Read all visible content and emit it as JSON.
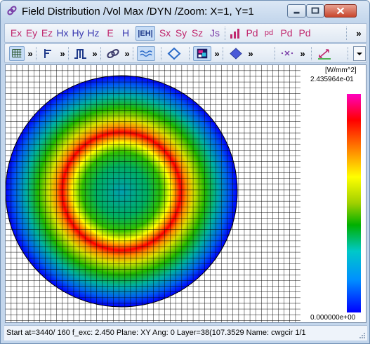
{
  "window": {
    "title": "Field Distribution /Vol Max /DYN /Zoom: X=1, Y=1"
  },
  "toolbar1": {
    "items": [
      {
        "label": "Ex",
        "icon": "ex-icon"
      },
      {
        "label": "Ey",
        "icon": "ey-icon"
      },
      {
        "label": "Ez",
        "icon": "ez-icon"
      },
      {
        "label": "Hx",
        "icon": "hx-icon"
      },
      {
        "label": "Hy",
        "icon": "hy-icon"
      },
      {
        "label": "Hz",
        "icon": "hz-icon"
      },
      {
        "label": "E",
        "icon": "e-icon"
      },
      {
        "label": "H",
        "icon": "h-icon"
      },
      {
        "label": "|EH|",
        "icon": "eh-magnitude-icon"
      },
      {
        "label": "Sx",
        "icon": "sx-icon"
      },
      {
        "label": "Sy",
        "icon": "sy-icon"
      },
      {
        "label": "Sz",
        "icon": "sz-icon"
      },
      {
        "label": "Js",
        "icon": "js-icon"
      },
      {
        "label": "Pd",
        "icon": "pd-icon"
      },
      {
        "label": "pd",
        "icon": "pd-small-icon"
      },
      {
        "label": "Pd",
        "icon": "pd-e-icon"
      },
      {
        "label": "Pd",
        "icon": "pd-h-icon"
      }
    ],
    "colors": {
      "e_field": "#c0286e",
      "h_field": "#3a3ab0",
      "poynting": "#c0286e",
      "active_bg": "#c6dcf6"
    }
  },
  "toolbar2": {
    "items": [
      {
        "icon": "grid-icon",
        "active": true
      },
      {
        "icon": "axis-icon",
        "active": false
      },
      {
        "icon": "pulse-icon",
        "active": false
      },
      {
        "icon": "link-icon",
        "active": false
      },
      {
        "icon": "wave-icon",
        "active": true
      },
      {
        "icon": "diamond-outline-icon",
        "active": false
      },
      {
        "icon": "colormap-icon",
        "active": true
      },
      {
        "icon": "diamond-filled-icon",
        "active": false
      },
      {
        "icon": "cross-dots-icon",
        "active": false
      },
      {
        "icon": "scale-arrows-icon",
        "active": false
      }
    ]
  },
  "plot": {
    "units": "[W/mm^2]",
    "max_value": "2.435964e-01",
    "min_value": "0.000000e+00",
    "colormap": [
      "#0000ff",
      "#0090ff",
      "#00c8c8",
      "#00b000",
      "#a0d000",
      "#ffff00",
      "#ff8000",
      "#ff0000",
      "#ff00c0"
    ]
  },
  "status": {
    "text": "Start at=3440/ 160  f_exc:  2.450  Plane: XY  Ang:   0  Layer=38(107.3529  Name: cwgcir 1/1"
  }
}
